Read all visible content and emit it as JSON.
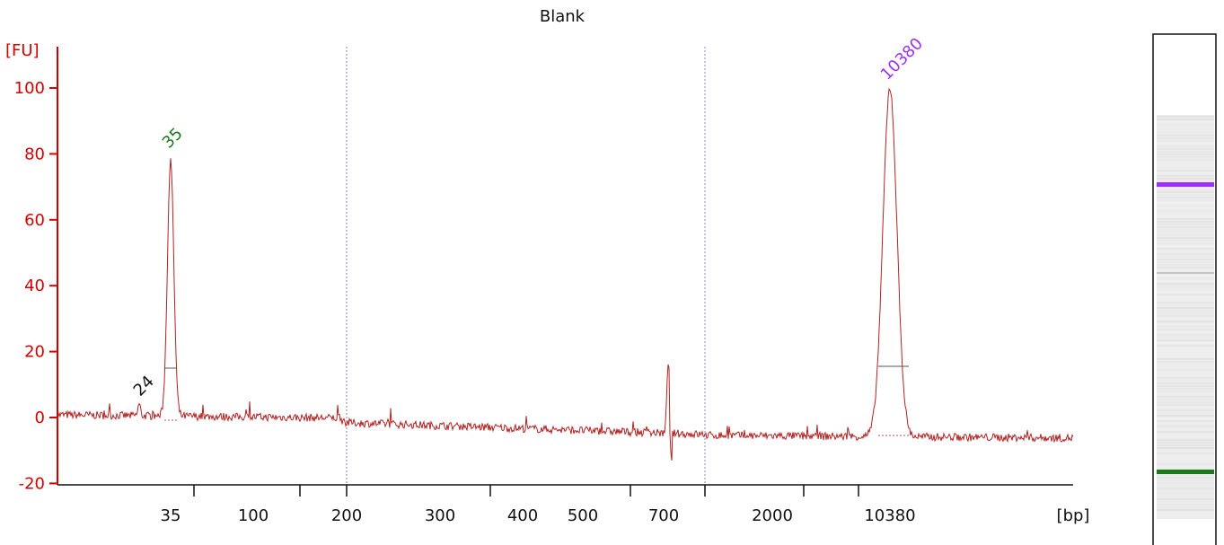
{
  "chart_data": {
    "type": "line",
    "title": "Blank",
    "ylabel": "[FU]",
    "xlabel": "[bp]",
    "ylim": [
      -20,
      110
    ],
    "y_ticks": [
      -20,
      0,
      20,
      40,
      60,
      80,
      100
    ],
    "x_tick_labels": [
      "35",
      "100",
      "200",
      "300",
      "400",
      "500",
      "700",
      "2000",
      "10380"
    ],
    "grid": false,
    "colors": {
      "axis": "#d40000",
      "trace": "#b22222",
      "marker_35": "#1a7a1a",
      "marker_10380": "#9b30ff",
      "label_24": "#111111",
      "separator": "#a07a9a"
    },
    "peak_labels": [
      {
        "text": "24",
        "color": "#111111"
      },
      {
        "text": "35",
        "color": "#1a7a1a"
      },
      {
        "text": "10380",
        "color": "#9b30ff"
      }
    ],
    "series": [
      {
        "peaks": [
          {
            "bp": 24,
            "fu": 4
          },
          {
            "bp": 35,
            "fu": 78
          },
          {
            "bp": 700,
            "fu": 17
          },
          {
            "bp": 10380,
            "fu": 100
          }
        ]
      }
    ],
    "gel_lane": {
      "bands": [
        {
          "label": "10380",
          "color": "#9b30ff"
        },
        {
          "label": "35",
          "color": "#1a7a1a"
        }
      ]
    }
  }
}
